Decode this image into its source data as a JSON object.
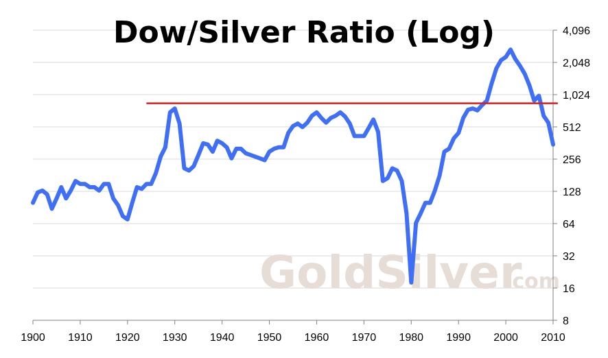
{
  "chart_data": {
    "type": "line",
    "title": "Dow/Silver Ratio (Log)",
    "xlabel": "",
    "ylabel": "",
    "y_scale": "log2",
    "xlim": [
      1900,
      2010
    ],
    "ylim": [
      8,
      4096
    ],
    "x_ticks": [
      "1900",
      "1910",
      "1920",
      "1930",
      "1940",
      "1950",
      "1960",
      "1970",
      "1980",
      "1990",
      "2000",
      "2010"
    ],
    "y_ticks": [
      {
        "value": 8,
        "label": "8"
      },
      {
        "value": 16,
        "label": "16"
      },
      {
        "value": 32,
        "label": "32"
      },
      {
        "value": 64,
        "label": "64"
      },
      {
        "value": 128,
        "label": "128"
      },
      {
        "value": 256,
        "label": "256"
      },
      {
        "value": 512,
        "label": "512"
      },
      {
        "value": 1024,
        "label": "1,024"
      },
      {
        "value": 2048,
        "label": "2,048"
      },
      {
        "value": 4096,
        "label": "4,096"
      }
    ],
    "grid": "horizontal",
    "series": [
      {
        "color": "#3f6ff7",
        "points": [
          [
            1900,
            100
          ],
          [
            1901,
            125
          ],
          [
            1902,
            130
          ],
          [
            1903,
            120
          ],
          [
            1904,
            88
          ],
          [
            1905,
            110
          ],
          [
            1906,
            140
          ],
          [
            1907,
            110
          ],
          [
            1908,
            130
          ],
          [
            1909,
            160
          ],
          [
            1910,
            150
          ],
          [
            1911,
            150
          ],
          [
            1912,
            140
          ],
          [
            1913,
            140
          ],
          [
            1914,
            130
          ],
          [
            1915,
            150
          ],
          [
            1916,
            150
          ],
          [
            1917,
            110
          ],
          [
            1918,
            95
          ],
          [
            1919,
            75
          ],
          [
            1920,
            70
          ],
          [
            1921,
            100
          ],
          [
            1922,
            140
          ],
          [
            1923,
            135
          ],
          [
            1924,
            150
          ],
          [
            1925,
            150
          ],
          [
            1926,
            190
          ],
          [
            1927,
            270
          ],
          [
            1928,
            330
          ],
          [
            1929,
            700
          ],
          [
            1930,
            760
          ],
          [
            1931,
            550
          ],
          [
            1932,
            210
          ],
          [
            1933,
            200
          ],
          [
            1934,
            220
          ],
          [
            1935,
            280
          ],
          [
            1936,
            360
          ],
          [
            1937,
            350
          ],
          [
            1938,
            300
          ],
          [
            1939,
            380
          ],
          [
            1940,
            360
          ],
          [
            1941,
            330
          ],
          [
            1942,
            260
          ],
          [
            1943,
            320
          ],
          [
            1944,
            320
          ],
          [
            1945,
            290
          ],
          [
            1946,
            280
          ],
          [
            1947,
            270
          ],
          [
            1948,
            260
          ],
          [
            1949,
            250
          ],
          [
            1950,
            300
          ],
          [
            1951,
            320
          ],
          [
            1952,
            330
          ],
          [
            1953,
            330
          ],
          [
            1954,
            450
          ],
          [
            1955,
            520
          ],
          [
            1956,
            550
          ],
          [
            1957,
            510
          ],
          [
            1958,
            560
          ],
          [
            1959,
            650
          ],
          [
            1960,
            700
          ],
          [
            1961,
            620
          ],
          [
            1962,
            560
          ],
          [
            1963,
            620
          ],
          [
            1964,
            650
          ],
          [
            1965,
            700
          ],
          [
            1966,
            640
          ],
          [
            1967,
            550
          ],
          [
            1968,
            420
          ],
          [
            1969,
            420
          ],
          [
            1970,
            420
          ],
          [
            1971,
            500
          ],
          [
            1972,
            600
          ],
          [
            1973,
            460
          ],
          [
            1974,
            160
          ],
          [
            1975,
            170
          ],
          [
            1976,
            210
          ],
          [
            1977,
            200
          ],
          [
            1978,
            160
          ],
          [
            1979,
            80
          ],
          [
            1980,
            18
          ],
          [
            1981,
            65
          ],
          [
            1982,
            80
          ],
          [
            1983,
            100
          ],
          [
            1984,
            100
          ],
          [
            1985,
            130
          ],
          [
            1986,
            180
          ],
          [
            1987,
            300
          ],
          [
            1988,
            320
          ],
          [
            1989,
            400
          ],
          [
            1990,
            450
          ],
          [
            1991,
            620
          ],
          [
            1992,
            740
          ],
          [
            1993,
            760
          ],
          [
            1994,
            730
          ],
          [
            1995,
            820
          ],
          [
            1996,
            900
          ],
          [
            1997,
            1300
          ],
          [
            1998,
            1800
          ],
          [
            1999,
            2150
          ],
          [
            2000,
            2300
          ],
          [
            2001,
            2700
          ],
          [
            2002,
            2200
          ],
          [
            2003,
            1900
          ],
          [
            2004,
            1600
          ],
          [
            2005,
            1250
          ],
          [
            2006,
            900
          ],
          [
            2007,
            1000
          ],
          [
            2008,
            650
          ],
          [
            2009,
            560
          ],
          [
            2010,
            350
          ]
        ]
      }
    ],
    "reference_line": {
      "value": 850,
      "x_start": 1924,
      "x_end": 2011,
      "color": "#e11c1c"
    },
    "watermark": {
      "main": "GoldSilver",
      "suffix": ".com"
    }
  }
}
